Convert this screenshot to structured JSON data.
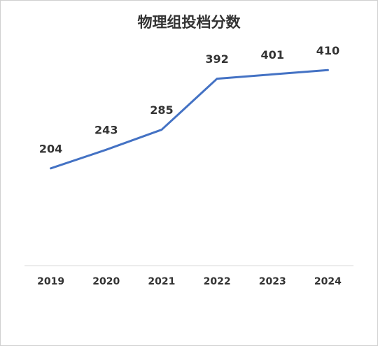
{
  "chart_data": {
    "type": "line",
    "title": "物理组投档分数",
    "categories": [
      "2019",
      "2020",
      "2021",
      "2022",
      "2023",
      "2024"
    ],
    "series": [
      {
        "name": "物理组投档分数",
        "color": "#4472c4",
        "values": [
          204,
          243,
          285,
          392,
          401,
          410
        ]
      }
    ],
    "ylim": [
      0,
      450
    ],
    "grid": false
  }
}
